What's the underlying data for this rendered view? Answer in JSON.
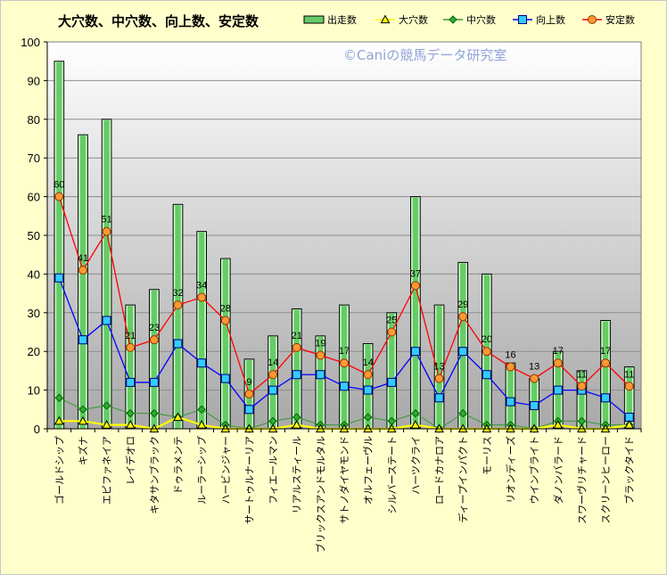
{
  "chart_data": {
    "type": "bar",
    "title": "大穴数、中穴数、向上数、安定数",
    "watermark": "©Caniの競馬データ研究室",
    "ylim": [
      0,
      100
    ],
    "yticks": [
      0,
      10,
      20,
      30,
      40,
      50,
      60,
      70,
      80,
      90,
      100
    ],
    "legend_position": "top-right",
    "grid": true,
    "categories": [
      "ゴールドシップ",
      "キズナ",
      "エピファネイア",
      "レイデオロ",
      "キタサンブラック",
      "ドゥラメンテ",
      "ルーラーシップ",
      "ハービンジャー",
      "サートゥルナーリア",
      "フィエールマン",
      "リアルスティール",
      "ブリックスアンドモルタル",
      "サトノダイヤモンド",
      "オルフェーヴル",
      "シルバーステート",
      "ハーツクライ",
      "ロードカナロア",
      "ディープインパクト",
      "モーリス",
      "リオンディーズ",
      "ウインブライト",
      "ダノンバラード",
      "スワーヴリチャード",
      "スクリーンヒーロー",
      "ブラックタイド"
    ],
    "series": [
      {
        "name": "出走数",
        "type": "bar",
        "color": "#66cc66",
        "values": [
          95,
          76,
          80,
          32,
          36,
          58,
          51,
          44,
          18,
          24,
          31,
          24,
          32,
          22,
          30,
          60,
          32,
          43,
          40,
          17,
          13,
          20,
          15,
          28,
          16
        ]
      },
      {
        "name": "大穴数",
        "type": "line",
        "color": "#ffff00",
        "values": [
          2,
          2,
          1,
          1,
          0,
          3,
          1,
          0,
          0,
          0,
          1,
          0,
          0,
          0,
          0,
          1,
          0,
          0,
          0,
          0,
          0,
          1,
          0,
          0,
          1
        ]
      },
      {
        "name": "中穴数",
        "type": "line",
        "color": "#33aa33",
        "values": [
          8,
          5,
          6,
          4,
          4,
          3,
          5,
          1,
          0,
          2,
          3,
          1,
          1,
          3,
          2,
          4,
          0,
          4,
          1,
          1,
          0,
          2,
          2,
          1,
          1
        ]
      },
      {
        "name": "向上数",
        "type": "line",
        "color": "#0070c0",
        "values": [
          39,
          23,
          28,
          12,
          12,
          22,
          17,
          13,
          5,
          10,
          14,
          14,
          11,
          10,
          12,
          20,
          8,
          20,
          14,
          7,
          6,
          10,
          10,
          8,
          3
        ]
      },
      {
        "name": "安定数",
        "type": "line",
        "color": "#ff0000",
        "values": [
          60,
          41,
          51,
          21,
          23,
          32,
          34,
          28,
          9,
          14,
          21,
          19,
          17,
          14,
          25,
          37,
          13,
          29,
          20,
          16,
          13,
          17,
          11,
          17,
          11
        ]
      }
    ],
    "data_labels": {
      "series": "安定数",
      "values": [
        60,
        41,
        51,
        21,
        23,
        32,
        34,
        28,
        9,
        14,
        21,
        19,
        17,
        14,
        25,
        37,
        13,
        29,
        20,
        16,
        13,
        17,
        11,
        17,
        11
      ]
    }
  }
}
